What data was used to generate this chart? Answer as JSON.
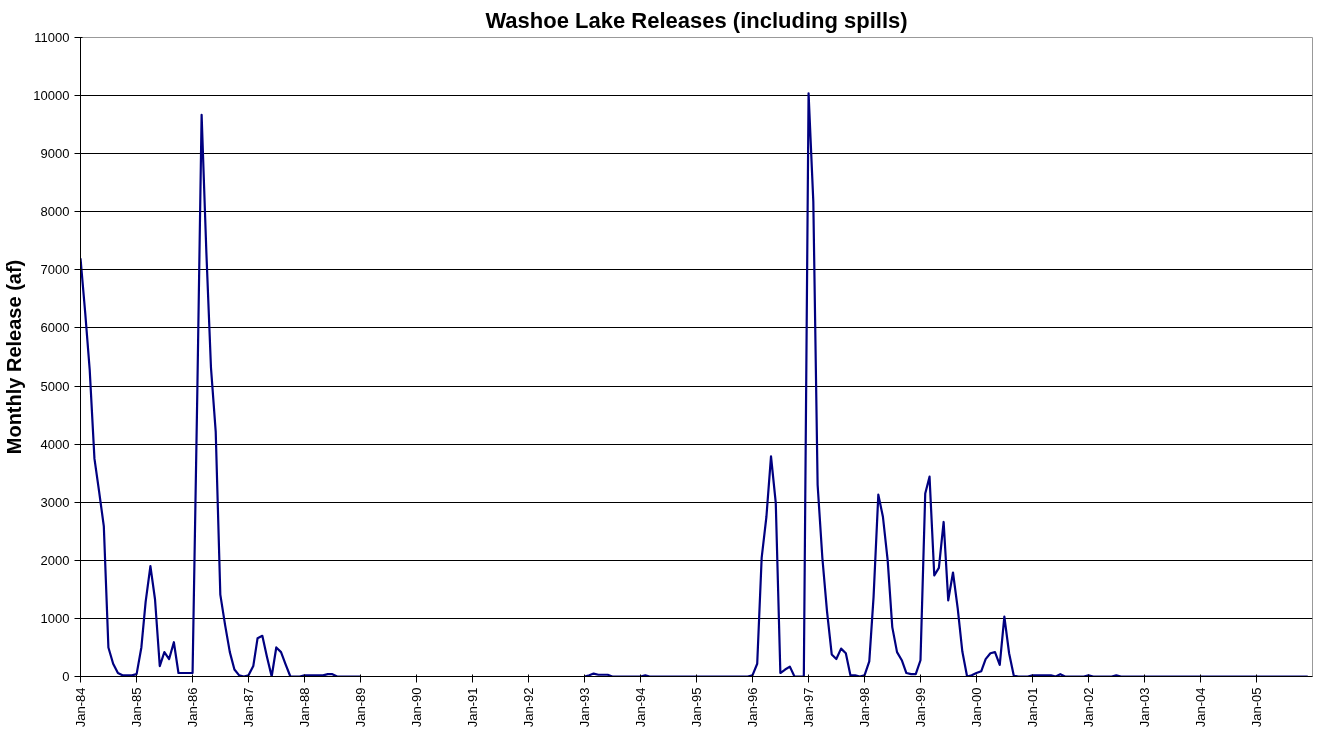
{
  "chart_data": {
    "type": "line",
    "title": "Washoe Lake Releases (including spills)",
    "ylabel": "Monthly Release (af)",
    "xlim": [
      "1984-01",
      "2006-01"
    ],
    "xticks": [
      {
        "value": "1984-01",
        "label": "Jan-84"
      },
      {
        "value": "1985-01",
        "label": "Jan-85"
      },
      {
        "value": "1986-01",
        "label": "Jan-86"
      },
      {
        "value": "1987-01",
        "label": "Jan-87"
      },
      {
        "value": "1988-01",
        "label": "Jan-88"
      },
      {
        "value": "1989-01",
        "label": "Jan-89"
      },
      {
        "value": "1990-01",
        "label": "Jan-90"
      },
      {
        "value": "1991-01",
        "label": "Jan-91"
      },
      {
        "value": "1992-01",
        "label": "Jan-92"
      },
      {
        "value": "1993-01",
        "label": "Jan-93"
      },
      {
        "value": "1994-01",
        "label": "Jan-94"
      },
      {
        "value": "1995-01",
        "label": "Jan-95"
      },
      {
        "value": "1996-01",
        "label": "Jan-96"
      },
      {
        "value": "1997-01",
        "label": "Jan-97"
      },
      {
        "value": "1998-01",
        "label": "Jan-98"
      },
      {
        "value": "1999-01",
        "label": "Jan-99"
      },
      {
        "value": "2000-01",
        "label": "Jan-00"
      },
      {
        "value": "2001-01",
        "label": "Jan-01"
      },
      {
        "value": "2002-01",
        "label": "Jan-02"
      },
      {
        "value": "2003-01",
        "label": "Jan-03"
      },
      {
        "value": "2004-01",
        "label": "Jan-04"
      },
      {
        "value": "2005-01",
        "label": "Jan-05"
      }
    ],
    "ylim": [
      0,
      11000
    ],
    "yticks": [
      0,
      1000,
      2000,
      3000,
      4000,
      5000,
      6000,
      7000,
      8000,
      9000,
      10000,
      11000
    ],
    "grid": "y",
    "marker": "none",
    "line_style": "solid",
    "series": [
      {
        "color": "#000080",
        "x": [
          "1984-01",
          "1984-02",
          "1984-03",
          "1984-04",
          "1984-05",
          "1984-06",
          "1984-07",
          "1984-08",
          "1984-09",
          "1984-10",
          "1984-11",
          "1984-12",
          "1985-01",
          "1985-02",
          "1985-03",
          "1985-04",
          "1985-05",
          "1985-06",
          "1985-07",
          "1985-08",
          "1985-09",
          "1985-10",
          "1985-11",
          "1985-12",
          "1986-01",
          "1986-02",
          "1986-03",
          "1986-04",
          "1986-05",
          "1986-06",
          "1986-07",
          "1986-08",
          "1986-09",
          "1986-10",
          "1986-11",
          "1986-12",
          "1987-01",
          "1987-02",
          "1987-03",
          "1987-04",
          "1987-05",
          "1987-06",
          "1987-07",
          "1987-08",
          "1987-09",
          "1987-10",
          "1987-11",
          "1987-12",
          "1988-01",
          "1988-02",
          "1988-03",
          "1988-04",
          "1988-05",
          "1988-06",
          "1988-07",
          "1988-08",
          "1989-01",
          "1989-02",
          "1992-12",
          "1993-01",
          "1993-02",
          "1993-03",
          "1993-04",
          "1993-05",
          "1993-06",
          "1993-07",
          "1994-01",
          "1994-02",
          "1994-03",
          "1995-12",
          "1996-01",
          "1996-02",
          "1996-03",
          "1996-04",
          "1996-05",
          "1996-06",
          "1996-07",
          "1996-08",
          "1996-09",
          "1996-10",
          "1996-11",
          "1996-12",
          "1997-01",
          "1997-02",
          "1997-03",
          "1997-04",
          "1997-05",
          "1997-06",
          "1997-07",
          "1997-08",
          "1997-09",
          "1997-10",
          "1997-11",
          "1997-12",
          "1998-01",
          "1998-02",
          "1998-03",
          "1998-04",
          "1998-05",
          "1998-06",
          "1998-07",
          "1998-08",
          "1998-09",
          "1998-10",
          "1998-11",
          "1998-12",
          "1999-01",
          "1999-02",
          "1999-03",
          "1999-04",
          "1999-05",
          "1999-06",
          "1999-07",
          "1999-08",
          "1999-09",
          "1999-10",
          "1999-11",
          "1999-12",
          "2000-01",
          "2000-02",
          "2000-03",
          "2000-04",
          "2000-05",
          "2000-06",
          "2000-07",
          "2000-08",
          "2000-09",
          "2000-10",
          "2000-11",
          "2000-12",
          "2001-01",
          "2001-05",
          "2001-06",
          "2001-07",
          "2001-08",
          "2001-12",
          "2002-01",
          "2002-02",
          "2002-06",
          "2002-07",
          "2002-08",
          "2005-12"
        ],
        "values": [
          7200,
          6250,
          5280,
          3750,
          3190,
          2590,
          500,
          220,
          60,
          20,
          20,
          20,
          40,
          500,
          1290,
          1900,
          1330,
          180,
          420,
          300,
          590,
          60,
          60,
          60,
          60,
          4900,
          9670,
          7300,
          5320,
          4210,
          1410,
          890,
          420,
          120,
          20,
          0,
          20,
          180,
          660,
          700,
          340,
          0,
          500,
          420,
          200,
          0,
          0,
          0,
          20,
          20,
          20,
          20,
          20,
          40,
          40,
          0,
          0,
          null,
          null,
          0,
          20,
          50,
          30,
          30,
          30,
          0,
          0,
          20,
          0,
          0,
          20,
          220,
          2040,
          2750,
          3790,
          2990,
          60,
          120,
          170,
          0,
          0,
          0,
          10040,
          8170,
          3300,
          2040,
          1130,
          380,
          300,
          480,
          400,
          20,
          20,
          0,
          20,
          260,
          1370,
          3130,
          2750,
          2000,
          850,
          420,
          280,
          60,
          40,
          40,
          280,
          3150,
          3440,
          1740,
          1870,
          2660,
          1310,
          1790,
          1170,
          430,
          0,
          20,
          60,
          90,
          300,
          400,
          420,
          200,
          1030,
          400,
          10,
          0,
          0,
          0,
          20,
          20,
          0,
          40,
          0,
          0,
          20,
          0,
          0,
          20,
          0,
          0
        ]
      }
    ]
  }
}
